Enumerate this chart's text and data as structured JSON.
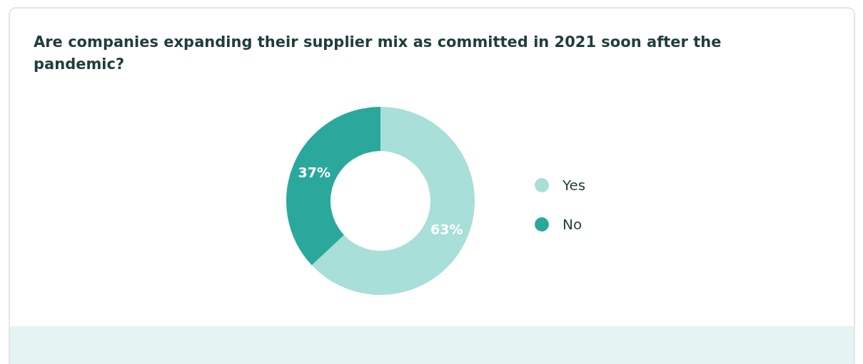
{
  "chart_data": {
    "type": "donut",
    "title": "Are companies expanding their supplier mix as committed in 2021 soon after the pandemic?",
    "categories": [
      "Yes",
      "No"
    ],
    "values": [
      63,
      37
    ],
    "colors": [
      "#a8dfd9",
      "#2ba89c"
    ],
    "value_labels": [
      "63%",
      "37%"
    ],
    "legend": "right"
  }
}
